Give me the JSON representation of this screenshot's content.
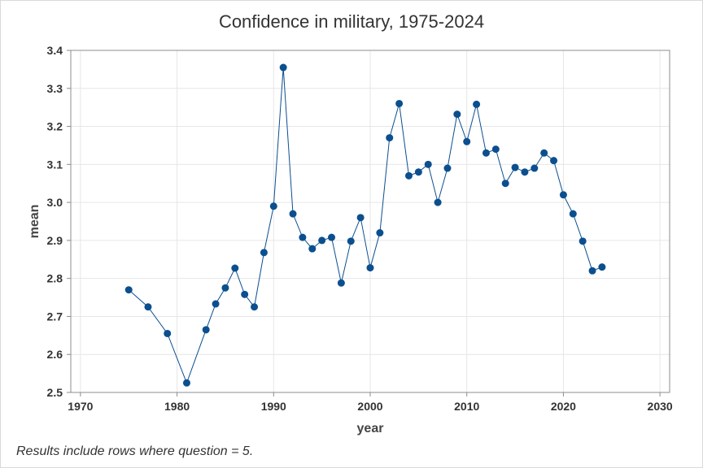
{
  "title": "Confidence in military, 1975-2024",
  "footnote": "Results include rows where  question = 5.",
  "colors": {
    "series": "#0b4f8f",
    "grid": "#e6e6e6",
    "axis": "#8c8c8c"
  },
  "chart_data": {
    "type": "line",
    "title": "Confidence in military, 1975-2024",
    "xlabel": "year",
    "ylabel": "mean",
    "xlim": [
      1969,
      2031
    ],
    "ylim": [
      2.5,
      3.4
    ],
    "xticks": [
      1970,
      1980,
      1990,
      2000,
      2010,
      2020,
      2030
    ],
    "yticks": [
      2.5,
      2.6,
      2.7,
      2.8,
      2.9,
      3.0,
      3.1,
      3.2,
      3.3,
      3.4
    ],
    "ytick_labels": [
      "2.5",
      "2.6",
      "2.7",
      "2.8",
      "2.9",
      "3.0",
      "3.1",
      "3.2",
      "3.3",
      "3.4"
    ],
    "grid": true,
    "markers": true,
    "series": [
      {
        "x": [
          1975,
          1977,
          1979,
          1981,
          1983,
          1984,
          1985,
          1986,
          1987,
          1988,
          1989,
          1990,
          1991,
          1992,
          1993,
          1994,
          1995,
          1996,
          1997,
          1998,
          1999,
          2000,
          2001,
          2002,
          2003,
          2004,
          2005,
          2006,
          2007,
          2008,
          2009,
          2010,
          2011,
          2012,
          2013,
          2014,
          2015,
          2016,
          2017,
          2018,
          2019,
          2020,
          2021,
          2022,
          2023,
          2024
        ],
        "y": [
          2.77,
          2.725,
          2.655,
          2.525,
          2.665,
          2.733,
          2.775,
          2.827,
          2.758,
          2.725,
          2.868,
          2.99,
          3.355,
          2.97,
          2.908,
          2.878,
          2.9,
          2.908,
          2.788,
          2.898,
          2.96,
          2.828,
          2.92,
          3.17,
          3.26,
          3.07,
          3.08,
          3.1,
          3.0,
          3.09,
          3.232,
          3.16,
          3.258,
          3.13,
          3.14,
          3.05,
          3.092,
          3.08,
          3.09,
          3.13,
          3.11,
          3.02,
          2.97,
          2.898,
          2.82,
          2.83
        ]
      }
    ]
  }
}
